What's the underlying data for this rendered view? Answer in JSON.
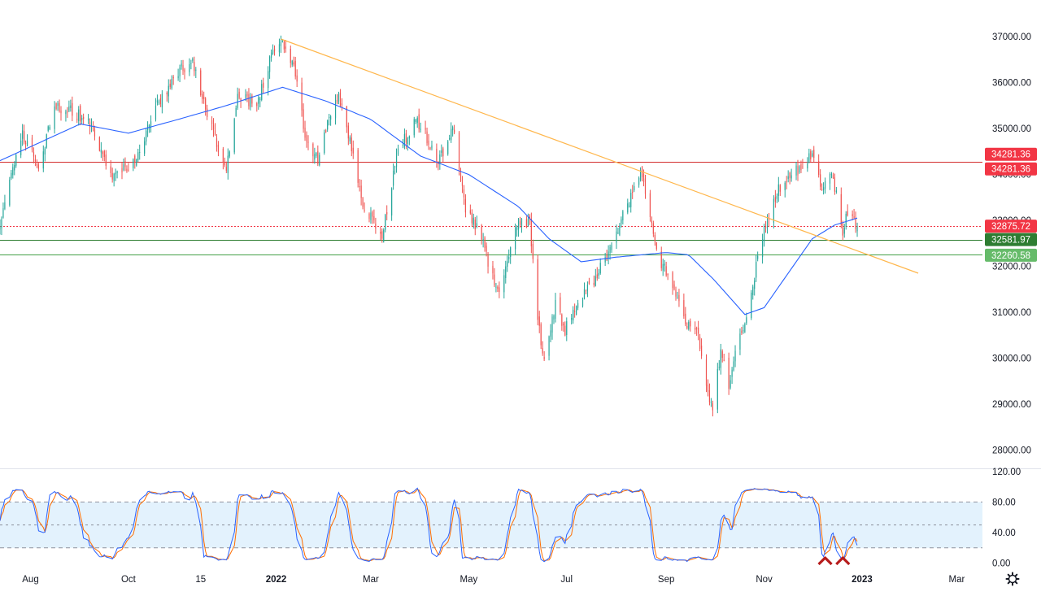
{
  "theme": {
    "up_color": "#26a69a",
    "down_color": "#ef5350",
    "ma_color": "#2962ff",
    "trendline_color": "#ffb74d",
    "resistance_color": "#d32f2f",
    "support_color": "#2e7d32",
    "current_color": "#f23645",
    "stoch_k_color": "#2962ff",
    "stoch_d_color": "#ff6d00",
    "stoch_band_color": "#e3f2fd",
    "marker_color": "#b71c1c"
  },
  "chart_data": [
    {
      "type": "candlestick",
      "y_axis_ticks": [
        "37000.00",
        "36000.00",
        "35000.00",
        "34000.00",
        "33000.00",
        "32000.00",
        "31000.00",
        "30000.00",
        "29000.00",
        "28000.00"
      ],
      "ylim": [
        27600,
        37800
      ],
      "x_axis_ticks": [
        {
          "label": "Aug",
          "date": "2021-08-01",
          "bold": false
        },
        {
          "label": "Oct",
          "date": "2021-10-01",
          "bold": false
        },
        {
          "label": "15",
          "date": "2021-11-15",
          "bold": false
        },
        {
          "label": "2022",
          "date": "2022-01-01",
          "bold": true
        },
        {
          "label": "Mar",
          "date": "2022-03-01",
          "bold": false
        },
        {
          "label": "May",
          "date": "2022-05-01",
          "bold": false
        },
        {
          "label": "Jul",
          "date": "2022-07-01",
          "bold": false
        },
        {
          "label": "Sep",
          "date": "2022-09-01",
          "bold": false
        },
        {
          "label": "Nov",
          "date": "2022-11-01",
          "bold": false
        },
        {
          "label": "2023",
          "date": "2023-01-01",
          "bold": true
        },
        {
          "label": "Mar",
          "date": "2023-03-01",
          "bold": false
        }
      ],
      "x_range": [
        "2021-07-13",
        "2023-03-17"
      ],
      "close_path": [
        [
          "2021-07-13",
          33000
        ],
        [
          "2021-07-27",
          34900
        ],
        [
          "2021-08-06",
          34100
        ],
        [
          "2021-08-16",
          35500
        ],
        [
          "2021-08-27",
          35400
        ],
        [
          "2021-09-08",
          35100
        ],
        [
          "2021-09-20",
          34000
        ],
        [
          "2021-10-05",
          34300
        ],
        [
          "2021-10-20",
          35600
        ],
        [
          "2021-11-02",
          36300
        ],
        [
          "2021-11-10",
          36400
        ],
        [
          "2021-11-23",
          34900
        ],
        [
          "2021-12-01",
          34100
        ],
        [
          "2021-12-08",
          35700
        ],
        [
          "2021-12-20",
          35500
        ],
        [
          "2021-12-29",
          36600
        ],
        [
          "2022-01-04",
          36950
        ],
        [
          "2022-01-12",
          36300
        ],
        [
          "2022-01-20",
          34700
        ],
        [
          "2022-01-27",
          34300
        ],
        [
          "2022-02-03",
          35200
        ],
        [
          "2022-02-09",
          35700
        ],
        [
          "2022-02-15",
          34900
        ],
        [
          "2022-02-24",
          33300
        ],
        [
          "2022-03-08",
          32700
        ],
        [
          "2022-03-18",
          34500
        ],
        [
          "2022-03-29",
          35200
        ],
        [
          "2022-04-05",
          34800
        ],
        [
          "2022-04-12",
          34300
        ],
        [
          "2022-04-18",
          34600
        ],
        [
          "2022-04-21",
          35100
        ],
        [
          "2022-04-29",
          33300
        ],
        [
          "2022-05-09",
          32600
        ],
        [
          "2022-05-19",
          31400
        ],
        [
          "2022-05-25",
          32000
        ],
        [
          "2022-05-31",
          33000
        ],
        [
          "2022-06-08",
          32900
        ],
        [
          "2022-06-13",
          30800
        ],
        [
          "2022-06-17",
          29900
        ],
        [
          "2022-06-24",
          31200
        ],
        [
          "2022-06-30",
          30600
        ],
        [
          "2022-07-08",
          31300
        ],
        [
          "2022-07-20",
          31800
        ],
        [
          "2022-08-02",
          32800
        ],
        [
          "2022-08-16",
          34100
        ],
        [
          "2022-08-26",
          32300
        ],
        [
          "2022-09-06",
          31500
        ],
        [
          "2022-09-13",
          30800
        ],
        [
          "2022-09-20",
          30600
        ],
        [
          "2022-09-30",
          28800
        ],
        [
          "2022-10-05",
          30200
        ],
        [
          "2022-10-10",
          29300
        ],
        [
          "2022-10-13",
          29900
        ],
        [
          "2022-10-21",
          31000
        ],
        [
          "2022-11-01",
          32800
        ],
        [
          "2022-11-10",
          33700
        ],
        [
          "2022-11-22",
          34100
        ],
        [
          "2022-12-01",
          34400
        ],
        [
          "2022-12-07",
          33600
        ],
        [
          "2022-12-13",
          34100
        ],
        [
          "2022-12-20",
          32800
        ],
        [
          "2022-12-23",
          33200
        ],
        [
          "2022-12-29",
          32875.72
        ]
      ],
      "moving_average": [
        [
          "2021-07-13",
          34300
        ],
        [
          "2021-09-01",
          35100
        ],
        [
          "2021-10-01",
          34900
        ],
        [
          "2021-11-01",
          35200
        ],
        [
          "2021-12-01",
          35500
        ],
        [
          "2022-01-05",
          35900
        ],
        [
          "2022-02-01",
          35600
        ],
        [
          "2022-03-01",
          35200
        ],
        [
          "2022-04-01",
          34400
        ],
        [
          "2022-05-01",
          34000
        ],
        [
          "2022-06-01",
          33300
        ],
        [
          "2022-06-20",
          32600
        ],
        [
          "2022-07-10",
          32100
        ],
        [
          "2022-08-01",
          32200
        ],
        [
          "2022-09-01",
          32300
        ],
        [
          "2022-09-15",
          32250
        ],
        [
          "2022-10-01",
          31700
        ],
        [
          "2022-10-20",
          30950
        ],
        [
          "2022-11-01",
          31100
        ],
        [
          "2022-11-15",
          31800
        ],
        [
          "2022-12-01",
          32600
        ],
        [
          "2022-12-15",
          32900
        ],
        [
          "2022-12-29",
          33050
        ]
      ],
      "trendline": {
        "from": [
          "2022-01-04",
          36950
        ],
        "to": [
          "2023-02-05",
          31850
        ]
      },
      "horizontal_lines": [
        {
          "name": "resistance",
          "value": 34281.36,
          "label": "34281.36",
          "style": "solid"
        },
        {
          "name": "current-price",
          "value": 32875.72,
          "label": "32875.72",
          "style": "dotted"
        },
        {
          "name": "support-1",
          "value": 32581.97,
          "label": "32581.97",
          "style": "solid"
        },
        {
          "name": "support-2",
          "value": 32260.58,
          "label": "32260.58",
          "style": "solid"
        }
      ],
      "price_tags": [
        {
          "name": "resistance-tag-upper",
          "label": "34281.36",
          "color": "#f23645"
        },
        {
          "name": "resistance-tag-lower",
          "label": "34281.36",
          "color": "#f23645"
        },
        {
          "name": "current-price-tag",
          "label": "32875.72",
          "color": "#f23645"
        },
        {
          "name": "support-1-tag",
          "label": "32581.97",
          "color": "#2e7d32"
        },
        {
          "name": "support-2-tag",
          "label": "32260.58",
          "color": "#66bb6a"
        }
      ]
    },
    {
      "type": "line",
      "indicator": "stochastic",
      "y_axis_ticks": [
        "120.00",
        "80.00",
        "40.00",
        "0.00"
      ],
      "ylim": [
        -8,
        122
      ],
      "band": [
        20,
        80
      ],
      "midline": 50,
      "signal_markers": [
        "2022-12-09",
        "2022-12-20"
      ]
    }
  ]
}
